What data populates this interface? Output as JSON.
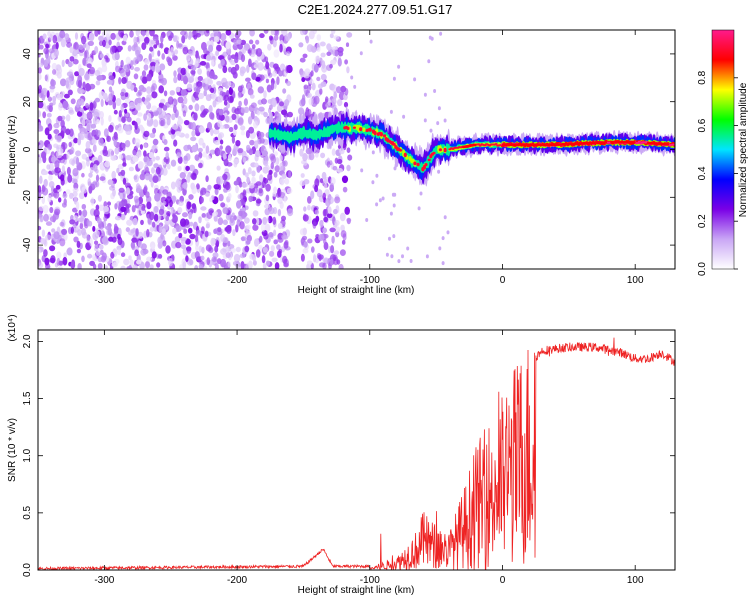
{
  "title": "C2E1.2024.277.09.51.G17",
  "chart_data": [
    {
      "type": "heatmap",
      "xlabel": "Height of straight line (km)",
      "ylabel": "Frequency (Hz)",
      "xlim": [
        -350,
        130
      ],
      "ylim": [
        -50,
        50
      ],
      "x_ticks": [
        -300,
        -200,
        -100,
        0,
        100
      ],
      "y_ticks": [
        -40,
        -20,
        0,
        20,
        40
      ],
      "colorbar": {
        "label": "Normalized spectral amplitude",
        "range": [
          0,
          1
        ],
        "ticks": [
          "0.0",
          "0.2",
          "0.4",
          "0.6",
          "0.8"
        ],
        "colors": [
          "#ffffff",
          "#c9a6f5",
          "#7a00e6",
          "#0000ff",
          "#00e5ff",
          "#00ff00",
          "#ffff00",
          "#ff0000",
          "#ff1a8c"
        ]
      },
      "noise_region": {
        "x_range": [
          -350,
          -115
        ],
        "gap_x_range": [
          -160,
          -152
        ],
        "amplitude": 0.25
      },
      "signal_ridge": [
        {
          "x": -175,
          "y": 7
        },
        {
          "x": -160,
          "y": 5
        },
        {
          "x": -150,
          "y": 7
        },
        {
          "x": -140,
          "y": 6
        },
        {
          "x": -125,
          "y": 9
        },
        {
          "x": -110,
          "y": 9
        },
        {
          "x": -100,
          "y": 8
        },
        {
          "x": -90,
          "y": 6
        },
        {
          "x": -80,
          "y": 1
        },
        {
          "x": -70,
          "y": -4
        },
        {
          "x": -60,
          "y": -8
        },
        {
          "x": -50,
          "y": 0
        },
        {
          "x": -40,
          "y": 0
        },
        {
          "x": -20,
          "y": 2
        },
        {
          "x": 0,
          "y": 2
        },
        {
          "x": 40,
          "y": 2
        },
        {
          "x": 80,
          "y": 3
        },
        {
          "x": 100,
          "y": 3
        },
        {
          "x": 130,
          "y": 2
        }
      ]
    },
    {
      "type": "line",
      "xlabel": "Height of straight line (km)",
      "ylabel": "SNR (10 * v/v)",
      "y_multiplier": "(x10⁴)",
      "xlim": [
        -350,
        130
      ],
      "ylim": [
        0,
        2.1
      ],
      "x_ticks": [
        -300,
        -200,
        -100,
        0,
        100
      ],
      "y_ticks": [
        "0.0",
        "0.5",
        "1.0",
        "1.5",
        "2.0"
      ],
      "color": "#ee2222",
      "envelope": [
        {
          "x": -350,
          "y": 0.0
        },
        {
          "x": -150,
          "y": 0.02
        },
        {
          "x": -135,
          "y": 0.17
        },
        {
          "x": -128,
          "y": 0.02
        },
        {
          "x": -100,
          "y": 0.02
        },
        {
          "x": -80,
          "y": 0.1
        },
        {
          "x": -65,
          "y": 0.3
        },
        {
          "x": -60,
          "y": 0.45
        },
        {
          "x": -50,
          "y": 0.35
        },
        {
          "x": -40,
          "y": 0.3
        },
        {
          "x": -30,
          "y": 0.6
        },
        {
          "x": -20,
          "y": 0.95
        },
        {
          "x": -10,
          "y": 1.15
        },
        {
          "x": 0,
          "y": 1.35
        },
        {
          "x": 10,
          "y": 1.6
        },
        {
          "x": 20,
          "y": 1.8
        },
        {
          "x": 30,
          "y": 1.92
        },
        {
          "x": 50,
          "y": 1.95
        },
        {
          "x": 70,
          "y": 1.95
        },
        {
          "x": 90,
          "y": 1.9
        },
        {
          "x": 100,
          "y": 1.85
        },
        {
          "x": 110,
          "y": 1.85
        },
        {
          "x": 120,
          "y": 1.9
        },
        {
          "x": 130,
          "y": 1.82
        }
      ]
    }
  ]
}
